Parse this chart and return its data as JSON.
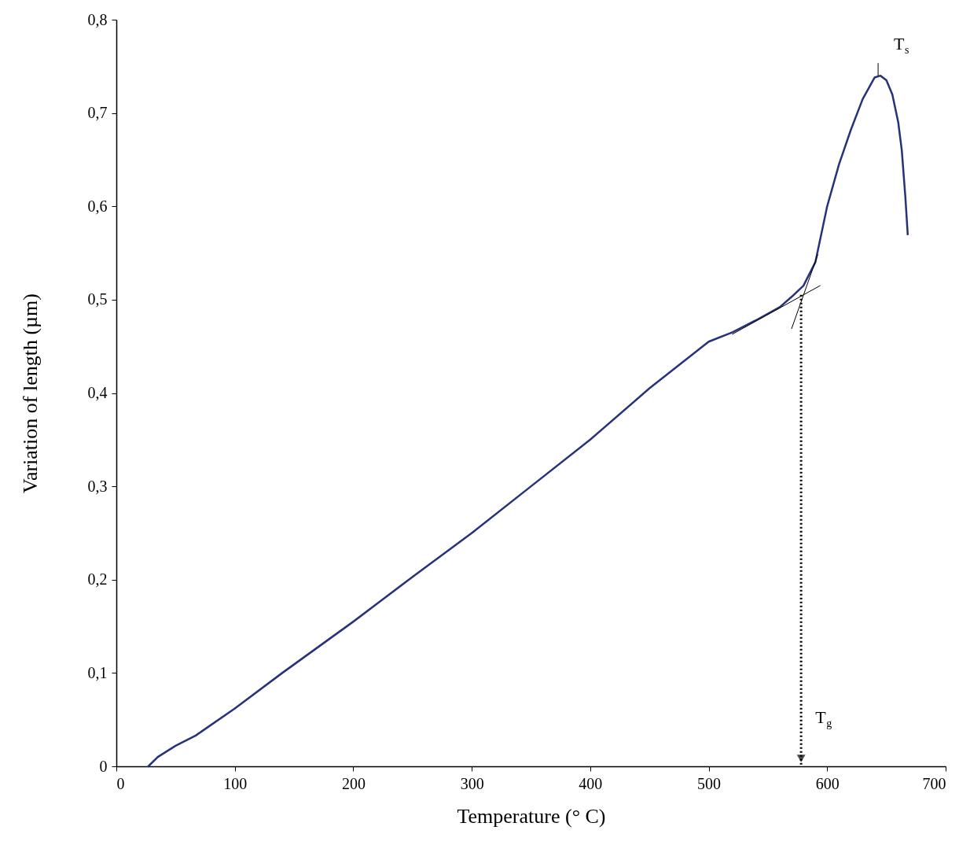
{
  "chart_data": {
    "type": "line",
    "xlabel": "Temperature (° C)",
    "ylabel": "Variation of length (µm)",
    "xlim": [
      0,
      700
    ],
    "xticks": [
      0,
      100,
      200,
      300,
      400,
      500,
      600,
      700
    ],
    "ylim": [
      0,
      0.8
    ],
    "yticks": [
      0,
      {
        "value": 0.1,
        "label": "0,1"
      },
      {
        "value": 0.2,
        "label": "0,2"
      },
      {
        "value": 0.3,
        "label": "0,3"
      },
      {
        "value": 0.4,
        "label": "0,4"
      },
      {
        "value": 0.5,
        "label": "0,5"
      },
      {
        "value": 0.6,
        "label": "0,6"
      },
      {
        "value": 0.7,
        "label": "0,7"
      },
      {
        "value": 0.8,
        "label": "0,8"
      }
    ],
    "grid": false,
    "marker": "none",
    "ref_lines": [
      {
        "axis": "x",
        "value": 578,
        "label": "T$_{g}$",
        "line_style": "dotted",
        "color": "#000000"
      }
    ],
    "series": [
      {
        "color": "#26337a",
        "x": [
          27,
          35,
          50,
          67,
          100,
          140,
          200,
          250,
          300,
          350,
          400,
          450,
          500,
          520,
          540,
          560,
          570,
          580,
          590,
          600,
          610,
          620,
          630,
          640,
          645,
          650,
          655,
          660,
          663,
          666,
          668
        ],
        "values": [
          0,
          0.01,
          0.022,
          0.033,
          0.062,
          0.1,
          0.155,
          0.203,
          0.25,
          0.3,
          0.35,
          0.405,
          0.455,
          0.465,
          0.478,
          0.492,
          0.503,
          0.515,
          0.54,
          0.6,
          0.645,
          0.682,
          0.715,
          0.738,
          0.74,
          0.735,
          0.72,
          0.69,
          0.66,
          0.61,
          0.57
        ]
      },
      {
        "type": "line",
        "color": "#000000",
        "x": [
          520,
          594
        ],
        "values": [
          0.463,
          0.515
        ]
      },
      {
        "type": "line",
        "color": "#000000",
        "x": [
          570,
          592
        ],
        "values": [
          0.469,
          0.548
        ]
      }
    ],
    "annotations": [
      {
        "text": "T$_{s}$",
        "x": 643,
        "y": 0.74
      }
    ]
  }
}
